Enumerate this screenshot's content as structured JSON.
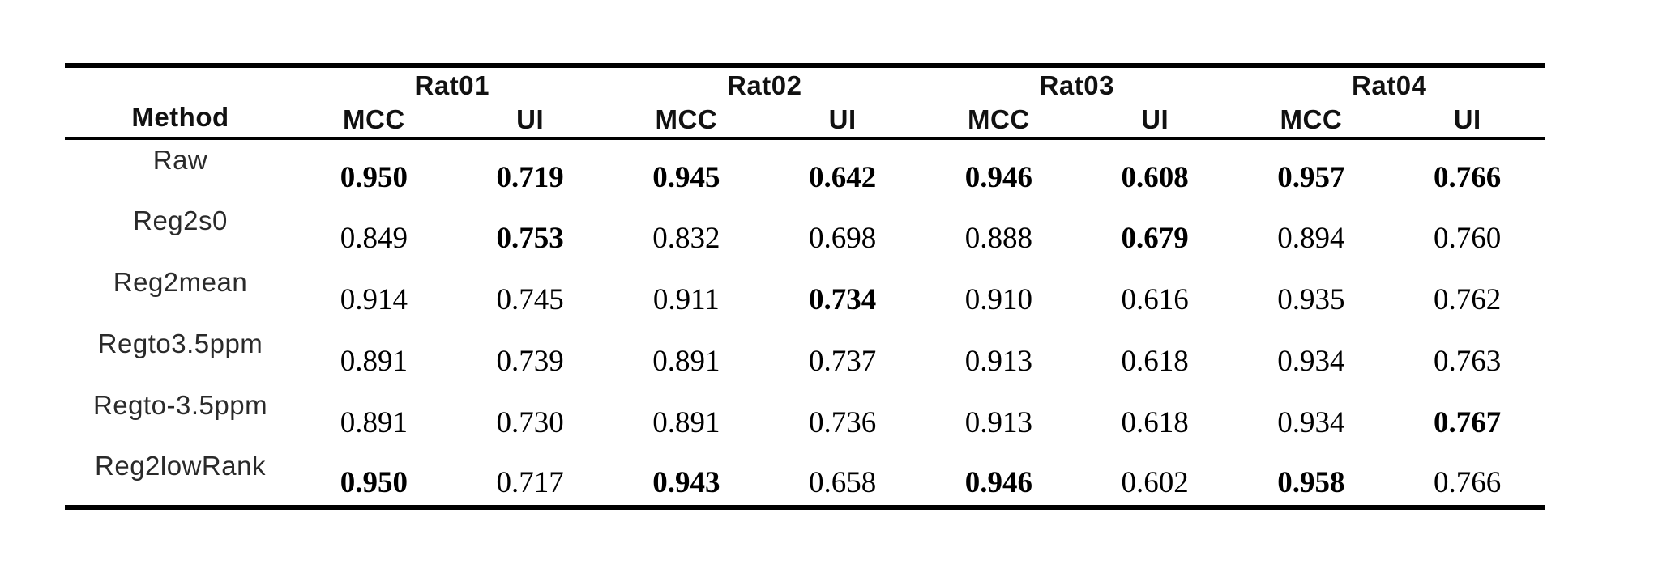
{
  "table": {
    "method_header": "Method",
    "groups": [
      {
        "label": "Rat01",
        "sub": [
          "MCC",
          "UI"
        ]
      },
      {
        "label": "Rat02",
        "sub": [
          "MCC",
          "UI"
        ]
      },
      {
        "label": "Rat03",
        "sub": [
          "MCC",
          "UI"
        ]
      },
      {
        "label": "Rat04",
        "sub": [
          "MCC",
          "UI"
        ]
      }
    ],
    "rows": [
      {
        "method": "Raw",
        "values": [
          {
            "v": "0.950",
            "bold": true
          },
          {
            "v": "0.719",
            "bold": true
          },
          {
            "v": "0.945",
            "bold": true
          },
          {
            "v": "0.642",
            "bold": true
          },
          {
            "v": "0.946",
            "bold": true
          },
          {
            "v": "0.608",
            "bold": true
          },
          {
            "v": "0.957",
            "bold": true
          },
          {
            "v": "0.766",
            "bold": true
          }
        ]
      },
      {
        "method": "Reg2s0",
        "values": [
          {
            "v": "0.849",
            "bold": false
          },
          {
            "v": "0.753",
            "bold": true
          },
          {
            "v": "0.832",
            "bold": false
          },
          {
            "v": "0.698",
            "bold": false
          },
          {
            "v": "0.888",
            "bold": false
          },
          {
            "v": "0.679",
            "bold": true
          },
          {
            "v": "0.894",
            "bold": false
          },
          {
            "v": "0.760",
            "bold": false
          }
        ]
      },
      {
        "method": "Reg2mean",
        "values": [
          {
            "v": "0.914",
            "bold": false
          },
          {
            "v": "0.745",
            "bold": false
          },
          {
            "v": "0.911",
            "bold": false
          },
          {
            "v": "0.734",
            "bold": true
          },
          {
            "v": "0.910",
            "bold": false
          },
          {
            "v": "0.616",
            "bold": false
          },
          {
            "v": "0.935",
            "bold": false
          },
          {
            "v": "0.762",
            "bold": false
          }
        ]
      },
      {
        "method": "Regto3.5ppm",
        "values": [
          {
            "v": "0.891",
            "bold": false
          },
          {
            "v": "0.739",
            "bold": false
          },
          {
            "v": "0.891",
            "bold": false
          },
          {
            "v": "0.737",
            "bold": false
          },
          {
            "v": "0.913",
            "bold": false
          },
          {
            "v": "0.618",
            "bold": false
          },
          {
            "v": "0.934",
            "bold": false
          },
          {
            "v": "0.763",
            "bold": false
          }
        ]
      },
      {
        "method": "Regto-3.5ppm",
        "values": [
          {
            "v": "0.891",
            "bold": false
          },
          {
            "v": "0.730",
            "bold": false
          },
          {
            "v": "0.891",
            "bold": false
          },
          {
            "v": "0.736",
            "bold": false
          },
          {
            "v": "0.913",
            "bold": false
          },
          {
            "v": "0.618",
            "bold": false
          },
          {
            "v": "0.934",
            "bold": false
          },
          {
            "v": "0.767",
            "bold": true
          }
        ]
      },
      {
        "method": "Reg2lowRank",
        "values": [
          {
            "v": "0.950",
            "bold": true
          },
          {
            "v": "0.717",
            "bold": false
          },
          {
            "v": "0.943",
            "bold": true
          },
          {
            "v": "0.658",
            "bold": false
          },
          {
            "v": "0.946",
            "bold": true
          },
          {
            "v": "0.602",
            "bold": false
          },
          {
            "v": "0.958",
            "bold": true
          },
          {
            "v": "0.766",
            "bold": false
          }
        ]
      }
    ]
  },
  "chart_data": {
    "type": "table",
    "columns": [
      "Method",
      "Rat01 MCC",
      "Rat01 UI",
      "Rat02 MCC",
      "Rat02 UI",
      "Rat03 MCC",
      "Rat03 UI",
      "Rat04 MCC",
      "Rat04 UI"
    ],
    "rows": [
      [
        "Raw",
        0.95,
        0.719,
        0.945,
        0.642,
        0.946,
        0.608,
        0.957,
        0.766
      ],
      [
        "Reg2s0",
        0.849,
        0.753,
        0.832,
        0.698,
        0.888,
        0.679,
        0.894,
        0.76
      ],
      [
        "Reg2mean",
        0.914,
        0.745,
        0.911,
        0.734,
        0.91,
        0.616,
        0.935,
        0.762
      ],
      [
        "Regto3.5ppm",
        0.891,
        0.739,
        0.891,
        0.737,
        0.913,
        0.618,
        0.934,
        0.763
      ],
      [
        "Regto-3.5ppm",
        0.891,
        0.73,
        0.891,
        0.736,
        0.913,
        0.618,
        0.934,
        0.767
      ],
      [
        "Reg2lowRank",
        0.95,
        0.717,
        0.943,
        0.658,
        0.946,
        0.602,
        0.958,
        0.766
      ]
    ],
    "bold_cells_note": "Raw row fully bold; Reg2s0 UI@Rat01+Rat03 bold; Reg2mean UI@Rat02 bold; Regto-3.5ppm UI@Rat04 bold; Reg2lowRank all MCC bold"
  }
}
